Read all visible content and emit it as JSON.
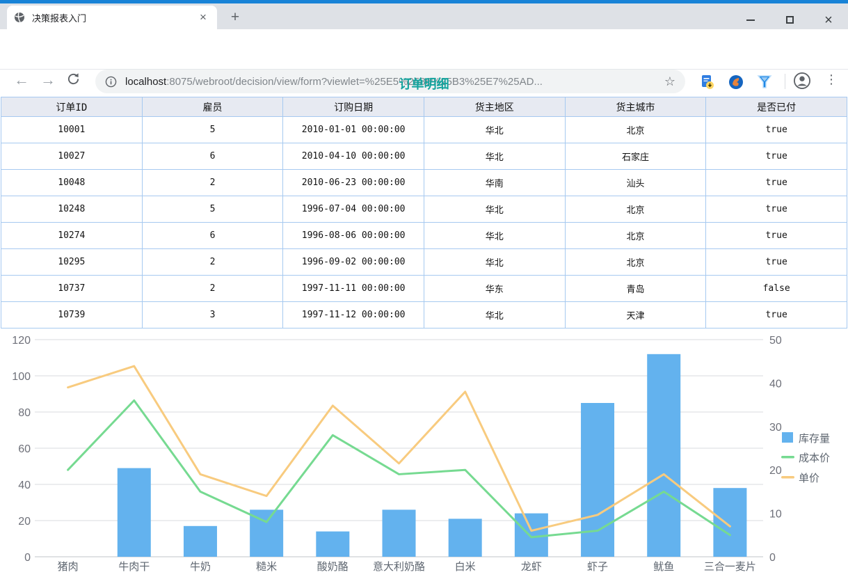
{
  "browser": {
    "tab": {
      "title": "决策报表入门",
      "close_glyph": "×",
      "favicon": "globe-icon"
    },
    "new_tab_glyph": "+",
    "window_controls": {
      "minimize": "minimize",
      "maximize": "maximize",
      "close": "×"
    },
    "nav": {
      "back_glyph": "←",
      "forward_glyph": "→"
    },
    "url": {
      "host": "localhost",
      "rest": ":8075/webroot/decision/view/form?viewlet=%25E5%2586%25B3%25E7%25AD..."
    },
    "star_glyph": "☆",
    "menu_glyph": "⋮"
  },
  "page": {
    "title": "订单明细"
  },
  "table": {
    "columns": [
      "订单ID",
      "雇员",
      "订购日期",
      "货主地区",
      "货主城市",
      "是否已付"
    ],
    "rows": [
      [
        "10001",
        "5",
        "2010-01-01 00:00:00",
        "华北",
        "北京",
        "true"
      ],
      [
        "10027",
        "6",
        "2010-04-10 00:00:00",
        "华北",
        "石家庄",
        "true"
      ],
      [
        "10048",
        "2",
        "2010-06-23 00:00:00",
        "华南",
        "汕头",
        "true"
      ],
      [
        "10248",
        "5",
        "1996-07-04 00:00:00",
        "华北",
        "北京",
        "true"
      ],
      [
        "10274",
        "6",
        "1996-08-06 00:00:00",
        "华北",
        "北京",
        "true"
      ],
      [
        "10295",
        "2",
        "1996-09-02 00:00:00",
        "华北",
        "北京",
        "true"
      ],
      [
        "10737",
        "2",
        "1997-11-11 00:00:00",
        "华东",
        "青岛",
        "false"
      ],
      [
        "10739",
        "3",
        "1997-11-12 00:00:00",
        "华北",
        "天津",
        "true"
      ]
    ]
  },
  "chart_data": {
    "type": "bar",
    "subtype": "combo-bar-line-dual-axis",
    "categories": [
      "猪肉",
      "牛肉干",
      "牛奶",
      "糙米",
      "酸奶酪",
      "意大利奶酪",
      "白米",
      "龙虾",
      "虾子",
      "鱿鱼",
      "三合一麦片"
    ],
    "series": [
      {
        "name": "库存量",
        "type": "bar",
        "axis": "left",
        "color": "#63b2ee",
        "values": [
          0,
          49,
          17,
          26,
          14,
          26,
          21,
          24,
          85,
          112,
          38
        ]
      },
      {
        "name": "成本价",
        "type": "line",
        "axis": "right",
        "color": "#76da91",
        "values": [
          20,
          36,
          15,
          8,
          28,
          19,
          20,
          4.5,
          6,
          15,
          5
        ]
      },
      {
        "name": "单价",
        "type": "line",
        "axis": "right",
        "color": "#f8cb7f",
        "values": [
          39,
          43.9,
          19,
          14,
          34.8,
          21.5,
          38,
          6,
          9.65,
          19,
          7
        ]
      }
    ],
    "title": "",
    "xlabel": "",
    "ylabel": "",
    "left_axis": {
      "min": 0,
      "max": 120,
      "step": 20,
      "ticks": [
        0,
        20,
        40,
        60,
        80,
        100,
        120
      ]
    },
    "right_axis": {
      "min": 0,
      "max": 50,
      "step": 10,
      "ticks": [
        0,
        10,
        20,
        30,
        40,
        50
      ]
    },
    "grid": true,
    "legend_position": "right"
  }
}
